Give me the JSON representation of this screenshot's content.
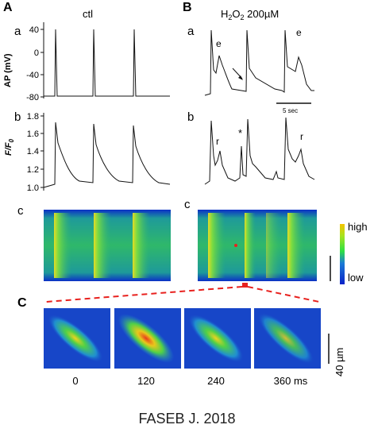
{
  "figure": {
    "panel_labels": {
      "A": "A",
      "B": "B",
      "C": "C"
    },
    "sub_labels": {
      "a": "a",
      "b": "b",
      "c": "c"
    },
    "condition_ctl": "ctl",
    "condition_h2o2": {
      "base": "H",
      "sub1": "2",
      "mid": "O",
      "sub2": "2",
      "tail": " 200µM"
    },
    "ap_axis": {
      "label": "AP (mV)",
      "ticks": [
        "40",
        "0",
        "-40",
        "-80"
      ]
    },
    "ff0_axis": {
      "label": "F/F",
      "label_sub": "0",
      "ticks": [
        "1.8",
        "1.6",
        "1.4",
        "1.2",
        "1.0"
      ]
    },
    "trace_annotations": {
      "ead": "e",
      "release": "r",
      "star": "*"
    },
    "scale_bar_time": "5 sec",
    "colorbar": {
      "high": "high",
      "low": "low",
      "high_color": "#f5c400",
      "mid_color": "#2ee042",
      "low_color": "#0a22c8"
    },
    "frame_times": [
      "0",
      "120",
      "240",
      "360 ms"
    ],
    "scale_bar_space": "40 µm",
    "highlight_color": "#e8211e"
  },
  "caption": "FASEB J. 2018"
}
